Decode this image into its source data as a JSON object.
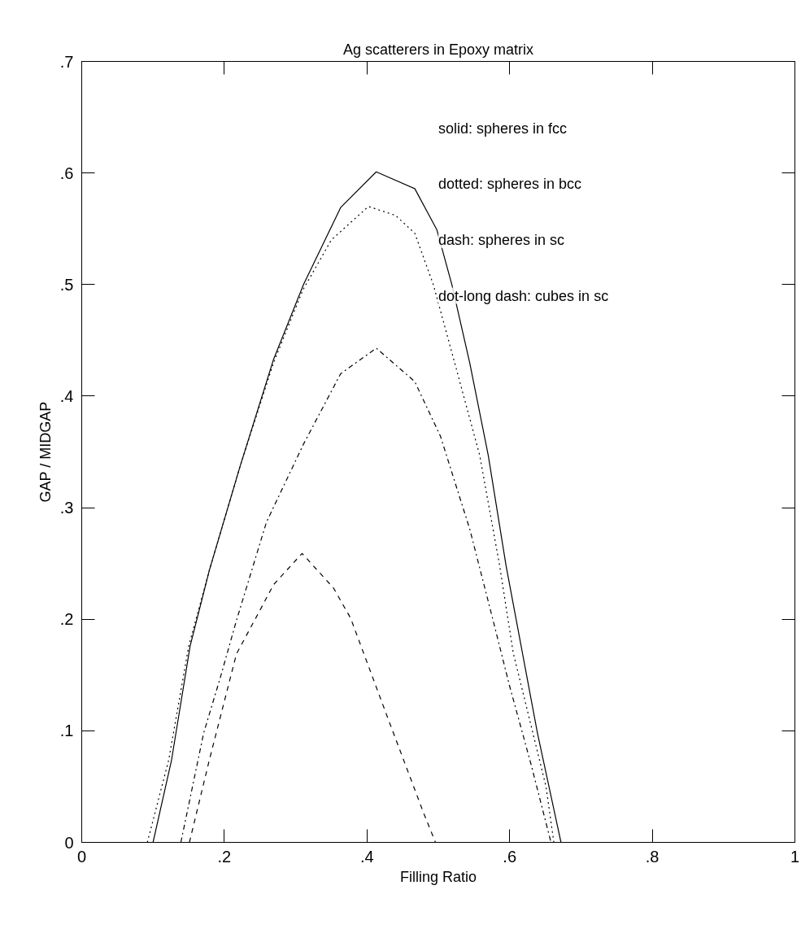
{
  "chart_data": {
    "type": "line",
    "title": "Ag scatterers in Epoxy matrix",
    "xlabel": "Filling Ratio",
    "ylabel": "GAP / MIDGAP",
    "xlim": [
      0,
      1
    ],
    "ylim": [
      0,
      0.7
    ],
    "xticks": [
      0,
      {
        "value": 0.2,
        "label": ".2"
      },
      {
        "value": 0.4,
        "label": ".4"
      },
      {
        "value": 0.6,
        "label": ".6"
      },
      {
        "value": 0.8,
        "label": ".8"
      },
      1
    ],
    "yticks": [
      0,
      {
        "value": 0.1,
        "label": ".1"
      },
      {
        "value": 0.2,
        "label": ".2"
      },
      {
        "value": 0.3,
        "label": ".3"
      },
      {
        "value": 0.4,
        "label": ".4"
      },
      {
        "value": 0.5,
        "label": ".5"
      },
      {
        "value": 0.6,
        "label": ".6"
      },
      {
        "value": 0.7,
        "label": ".7"
      }
    ],
    "grid": false,
    "marker": "none",
    "annotations": [
      "solid: spheres in fcc",
      "dotted: spheres in bcc",
      "dash: spheres in sc",
      "dot-long dash: cubes in sc"
    ],
    "series": [
      {
        "color": "#000000",
        "line_style": "solid",
        "x": [
          0.1,
          0.126,
          0.152,
          0.179,
          0.222,
          0.269,
          0.311,
          0.363,
          0.413,
          0.467,
          0.498,
          0.519,
          0.544,
          0.57,
          0.595,
          0.639,
          0.672
        ],
        "values": [
          0,
          0.074,
          0.176,
          0.244,
          0.337,
          0.433,
          0.5,
          0.569,
          0.601,
          0.586,
          0.549,
          0.5,
          0.43,
          0.347,
          0.248,
          0.098,
          0
        ]
      },
      {
        "color": "#000000",
        "line_style": "dotted",
        "x": [
          0.092,
          0.122,
          0.15,
          0.179,
          0.222,
          0.269,
          0.31,
          0.35,
          0.402,
          0.44,
          0.467,
          0.493,
          0.525,
          0.558,
          0.586,
          0.605,
          0.651,
          0.662
        ],
        "values": [
          0,
          0.074,
          0.176,
          0.244,
          0.337,
          0.43,
          0.495,
          0.54,
          0.57,
          0.562,
          0.546,
          0.5,
          0.425,
          0.347,
          0.248,
          0.17,
          0.05,
          0
        ]
      },
      {
        "color": "#000000",
        "line_style": "dashed",
        "x": [
          0.151,
          0.179,
          0.217,
          0.244,
          0.269,
          0.309,
          0.353,
          0.377,
          0.43,
          0.479,
          0.496
        ],
        "values": [
          0,
          0.074,
          0.169,
          0.201,
          0.231,
          0.259,
          0.228,
          0.201,
          0.11,
          0.027,
          0
        ]
      },
      {
        "color": "#000000",
        "line_style": "dashdot",
        "x": [
          0.139,
          0.171,
          0.194,
          0.217,
          0.259,
          0.311,
          0.363,
          0.413,
          0.467,
          0.503,
          0.544,
          0.576,
          0.6,
          0.63,
          0.658
        ],
        "values": [
          0,
          0.098,
          0.147,
          0.199,
          0.287,
          0.357,
          0.42,
          0.443,
          0.413,
          0.364,
          0.281,
          0.201,
          0.14,
          0.07,
          0
        ]
      }
    ]
  }
}
